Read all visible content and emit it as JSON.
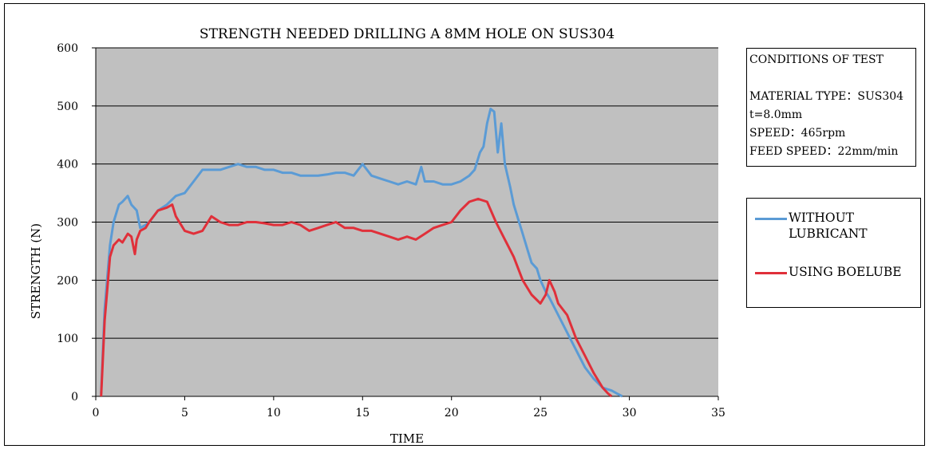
{
  "chart_data": {
    "type": "line",
    "title": "STRENGTH NEEDED DRILLING A 8MM HOLE ON SUS304",
    "xlabel": "TIME",
    "ylabel": "STRENGTH (N)",
    "xlim": [
      0,
      35
    ],
    "ylim": [
      0,
      600
    ],
    "xticks": [
      0,
      5,
      10,
      15,
      20,
      25,
      30,
      35
    ],
    "yticks": [
      0,
      100,
      200,
      300,
      400,
      500,
      600
    ],
    "grid": true,
    "plot_background": "#C0C0C0",
    "legend_position": "right",
    "series": [
      {
        "name": "WITHOUT LUBRICANT",
        "color": "#5B9BD5",
        "x": [
          0.3,
          0.5,
          0.8,
          1.0,
          1.3,
          1.5,
          1.8,
          2.0,
          2.3,
          2.5,
          2.8,
          3.0,
          3.5,
          4.0,
          4.5,
          5.0,
          5.5,
          6.0,
          6.5,
          7.0,
          7.5,
          8.0,
          8.5,
          9.0,
          9.5,
          10.0,
          10.5,
          11.0,
          11.5,
          12.0,
          12.5,
          13.0,
          13.5,
          14.0,
          14.5,
          15.0,
          15.5,
          16.0,
          16.5,
          17.0,
          17.5,
          18.0,
          18.3,
          18.5,
          19.0,
          19.5,
          20.0,
          20.5,
          21.0,
          21.3,
          21.6,
          21.8,
          22.0,
          22.2,
          22.4,
          22.6,
          22.8,
          23.0,
          23.3,
          23.5,
          23.8,
          24.0,
          24.3,
          24.5,
          24.8,
          25.0,
          25.3,
          25.5,
          26.0,
          26.5,
          27.0,
          27.5,
          28.0,
          28.5,
          29.0,
          29.3,
          29.6
        ],
        "y": [
          5,
          150,
          260,
          300,
          330,
          335,
          345,
          330,
          320,
          290,
          295,
          300,
          320,
          330,
          345,
          350,
          370,
          390,
          390,
          390,
          395,
          400,
          395,
          395,
          390,
          390,
          385,
          385,
          380,
          380,
          380,
          382,
          385,
          385,
          380,
          400,
          380,
          375,
          370,
          365,
          370,
          365,
          395,
          370,
          370,
          365,
          365,
          370,
          380,
          390,
          420,
          430,
          470,
          495,
          490,
          420,
          470,
          400,
          360,
          330,
          300,
          280,
          250,
          230,
          220,
          200,
          180,
          170,
          140,
          110,
          80,
          50,
          30,
          15,
          10,
          5,
          0
        ]
      },
      {
        "name": "USING BOELUBE",
        "color": "#E0303A",
        "x": [
          0.3,
          0.5,
          0.8,
          1.0,
          1.3,
          1.5,
          1.8,
          2.0,
          2.2,
          2.3,
          2.5,
          2.8,
          3.0,
          3.5,
          4.0,
          4.3,
          4.5,
          5.0,
          5.5,
          6.0,
          6.3,
          6.5,
          7.0,
          7.5,
          8.0,
          8.5,
          9.0,
          9.5,
          10.0,
          10.5,
          11.0,
          11.5,
          12.0,
          12.5,
          13.0,
          13.5,
          14.0,
          14.5,
          15.0,
          15.5,
          16.0,
          16.5,
          17.0,
          17.5,
          18.0,
          18.5,
          19.0,
          19.5,
          20.0,
          20.5,
          21.0,
          21.5,
          22.0,
          22.5,
          23.0,
          23.5,
          24.0,
          24.5,
          25.0,
          25.3,
          25.5,
          25.8,
          26.0,
          26.5,
          27.0,
          27.5,
          28.0,
          28.5,
          28.8,
          29.0
        ],
        "y": [
          0,
          130,
          240,
          260,
          270,
          265,
          280,
          275,
          245,
          270,
          285,
          290,
          300,
          320,
          325,
          330,
          310,
          285,
          280,
          285,
          300,
          310,
          300,
          295,
          295,
          300,
          300,
          298,
          295,
          295,
          300,
          295,
          285,
          290,
          295,
          300,
          290,
          290,
          285,
          285,
          280,
          275,
          270,
          275,
          270,
          280,
          290,
          295,
          300,
          320,
          335,
          340,
          335,
          300,
          270,
          240,
          200,
          175,
          160,
          175,
          200,
          180,
          160,
          140,
          100,
          70,
          40,
          15,
          5,
          0
        ]
      }
    ]
  },
  "conditions": {
    "title": "CONDITIONS OF TEST",
    "material": "MATERIAL TYPE：SUS304",
    "thickness": "t=8.0mm",
    "speed": "SPEED：465rpm",
    "feed": "FEED SPEED：22mm/min"
  }
}
